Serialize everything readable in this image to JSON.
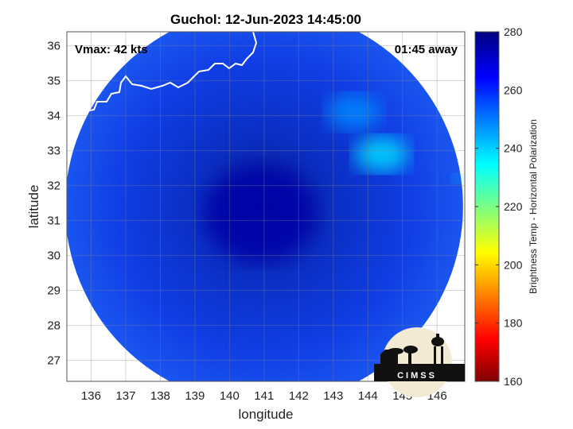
{
  "chart_data": {
    "type": "heatmap",
    "title": "Guchol: 12-Jun-2023 14:45:00",
    "xlabel": "longitude",
    "ylabel": "latitude",
    "xlim": [
      135.3,
      146.8
    ],
    "ylim": [
      26.4,
      36.4
    ],
    "xticks": [
      136,
      137,
      138,
      139,
      140,
      141,
      142,
      143,
      144,
      145,
      146
    ],
    "yticks": [
      27,
      28,
      29,
      30,
      31,
      32,
      33,
      34,
      35,
      36
    ],
    "grid": true,
    "annotations": {
      "vmax": "Vmax: 42 kts",
      "time_away": "01:45 away"
    },
    "colorbar": {
      "label": "Brightness Temp - Horizontal Polarization",
      "range": [
        160,
        280
      ],
      "ticks": [
        160,
        180,
        200,
        220,
        240,
        260,
        280
      ],
      "colormap": "jet"
    },
    "storm_center": {
      "lon": 140.9,
      "lat": 31.2
    },
    "swath_center": {
      "lon": 141.0,
      "lat": 31.4
    },
    "features": [
      {
        "name": "eye-region",
        "lon": 140.9,
        "lat": 31.2,
        "value": 275
      },
      {
        "name": "convection-band",
        "lon": 144.4,
        "lat": 32.9,
        "value": 238
      },
      {
        "name": "convection-band",
        "lon": 143.6,
        "lat": 34.1,
        "value": 248
      },
      {
        "name": "edge-cell",
        "lon": 146.6,
        "lat": 32.2,
        "value": 240
      }
    ],
    "logo": "CIMSS"
  }
}
